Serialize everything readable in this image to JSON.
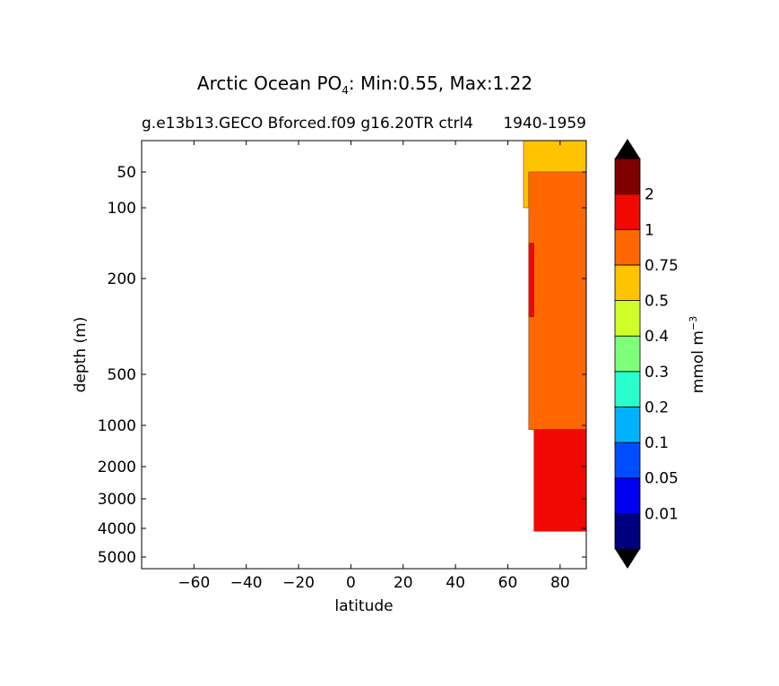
{
  "chart_data": {
    "type": "heatmap",
    "title": "Arctic Ocean PO",
    "title_subscript": "4",
    "title_suffix": ": Min:0.55, Max:1.22",
    "subtitle_left": "g.e13b13.GECO Bforced.f09 g16.20TR ctrl4",
    "subtitle_right": "1940-1959",
    "xlabel": "latitude",
    "ylabel": "depth (m)",
    "xlim": [
      -80,
      90
    ],
    "x_ticks": [
      -60,
      -40,
      -20,
      0,
      20,
      40,
      60,
      80
    ],
    "x_tick_labels": [
      "−60",
      "−40",
      "−20",
      "0",
      "20",
      "40",
      "60",
      "80"
    ],
    "y_scale": "depth-stretched (inverted)",
    "ylim": [
      0,
      5500
    ],
    "y_ticks": [
      50,
      100,
      200,
      500,
      1000,
      2000,
      3000,
      4000,
      5000
    ],
    "y_tick_labels": [
      "50",
      "100",
      "200",
      "500",
      "1000",
      "2000",
      "3000",
      "4000",
      "5000"
    ],
    "colorbar": {
      "label": "mmol m",
      "label_superscript": "−3",
      "extend": "both",
      "extend_color": "#000000",
      "levels": [
        "0.01",
        "0.05",
        "0.1",
        "0.2",
        "0.3",
        "0.4",
        "0.5",
        "0.75",
        "1",
        "2"
      ],
      "colors": [
        "#00007f",
        "#0000f1",
        "#004dff",
        "#00b1ff",
        "#29ffce",
        "#7dff7a",
        "#ceff29",
        "#ffc400",
        "#ff6800",
        "#f10800",
        "#7f0000"
      ]
    },
    "regions": [
      {
        "band": "0.5-0.75",
        "color": "#ffc400",
        "lat_range": [
          66,
          90
        ],
        "depth_range": [
          0,
          100
        ]
      },
      {
        "band": "0.75-1",
        "color": "#ff6800",
        "lat_range": [
          68,
          90
        ],
        "depth_range": [
          50,
          1100
        ]
      },
      {
        "band": "1-2",
        "color": "#f10800",
        "lat_range": [
          70,
          90
        ],
        "depth_range": [
          1100,
          4100
        ]
      },
      {
        "band": "1-2",
        "color": "#f10800",
        "lat_range": [
          68,
          70
        ],
        "depth_range": [
          150,
          320
        ]
      }
    ]
  }
}
